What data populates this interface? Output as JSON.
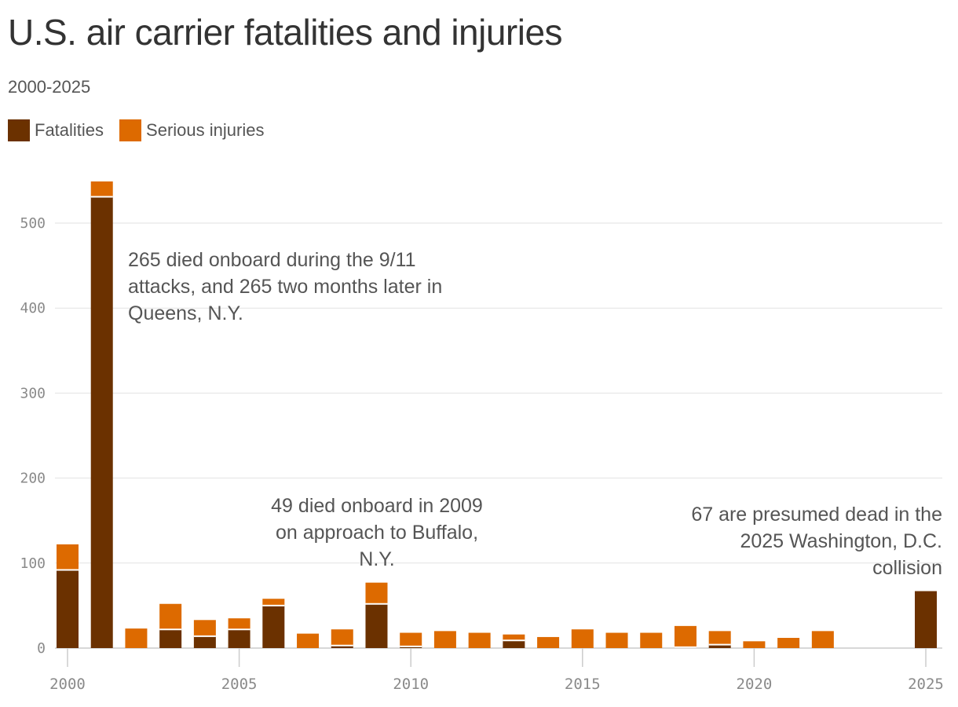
{
  "chart_data": {
    "type": "bar",
    "stacked": true,
    "title": "U.S. air carrier fatalities and injuries",
    "subtitle": "2000-2025",
    "x": [
      2000,
      2001,
      2002,
      2003,
      2004,
      2005,
      2006,
      2007,
      2008,
      2009,
      2010,
      2011,
      2012,
      2013,
      2014,
      2015,
      2016,
      2017,
      2018,
      2019,
      2020,
      2021,
      2022,
      2023,
      2024,
      2025
    ],
    "series": [
      {
        "name": "Fatalities",
        "color": "#6b3100",
        "values": [
          92,
          531,
          0,
          22,
          14,
          22,
          50,
          0,
          3,
          52,
          2,
          0,
          0,
          9,
          0,
          0,
          0,
          0,
          1,
          4,
          0,
          0,
          0,
          0,
          0,
          67
        ]
      },
      {
        "name": "Serious injuries",
        "color": "#dd6a00",
        "values": [
          30,
          18,
          23,
          30,
          19,
          13,
          8,
          17,
          19,
          25,
          16,
          20,
          18,
          7,
          13,
          22,
          18,
          18,
          25,
          16,
          8,
          12,
          20,
          0,
          0,
          0
        ]
      }
    ],
    "ylim": [
      0,
      560
    ],
    "yticks": [
      0,
      100,
      200,
      300,
      400,
      500
    ],
    "xticks": [
      2000,
      2005,
      2010,
      2015,
      2020,
      2025
    ],
    "grid": true,
    "legend": "top-left",
    "annotations": [
      {
        "text": "265 died onboard during the 9/11 attacks, and 265 two months later in Queens, N.Y."
      },
      {
        "text": "49 died onboard in 2009 on approach to Buffalo, N.Y."
      },
      {
        "text": "67 are presumed dead in the 2025 Washington, D.C. collision"
      }
    ]
  }
}
